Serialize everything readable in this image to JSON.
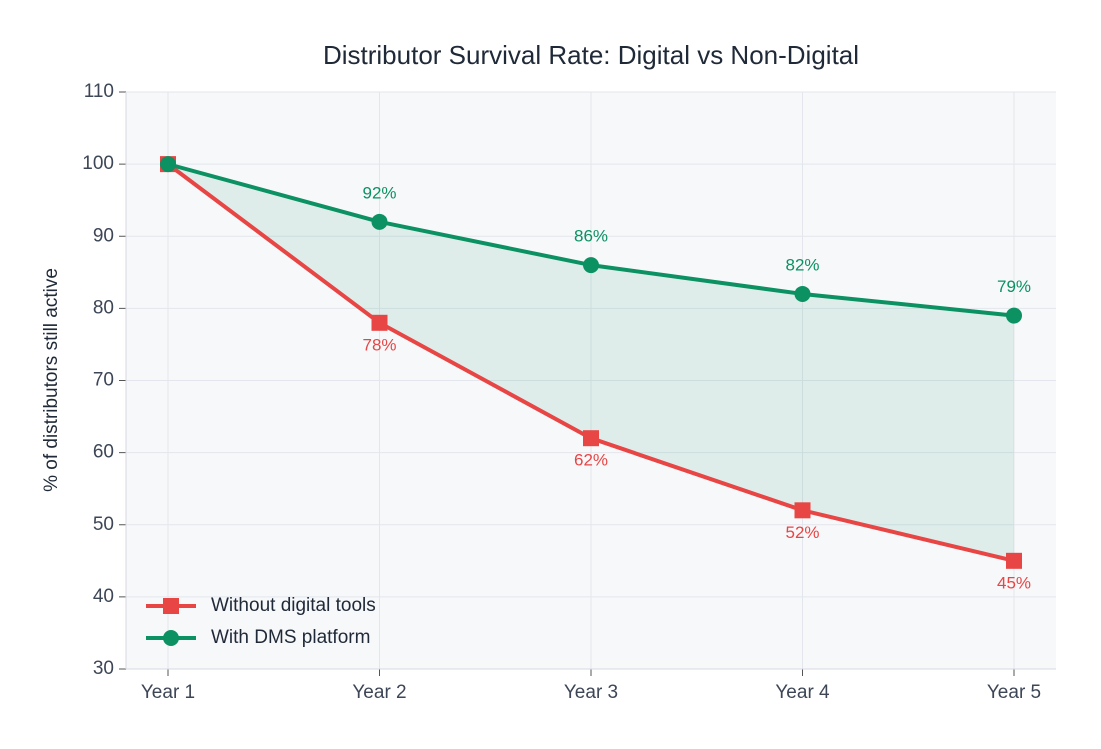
{
  "chart_data": {
    "type": "line",
    "title": "Distributor Survival Rate: Digital vs Non-Digital",
    "y_label": "% of distributors still active",
    "categories": [
      "Year 1",
      "Year 2",
      "Year 3",
      "Year 4",
      "Year 5"
    ],
    "series": [
      {
        "name": "Without digital tools",
        "color": "#e84545",
        "marker": "square",
        "values": [
          100,
          78,
          62,
          52,
          45
        ],
        "value_labels": [
          null,
          "78%",
          "62%",
          "52%",
          "45%"
        ],
        "label_position": "below"
      },
      {
        "name": "With DMS platform",
        "color": "#0b9162",
        "marker": "circle",
        "values": [
          100,
          92,
          86,
          82,
          79
        ],
        "value_labels": [
          null,
          "92%",
          "86%",
          "82%",
          "79%"
        ],
        "label_position": "above"
      }
    ],
    "fill_between": true,
    "ylim": [
      30,
      110
    ],
    "yticks": [
      30,
      40,
      50,
      60,
      70,
      80,
      90,
      100,
      110
    ],
    "grid": true,
    "legend": "lower left"
  }
}
